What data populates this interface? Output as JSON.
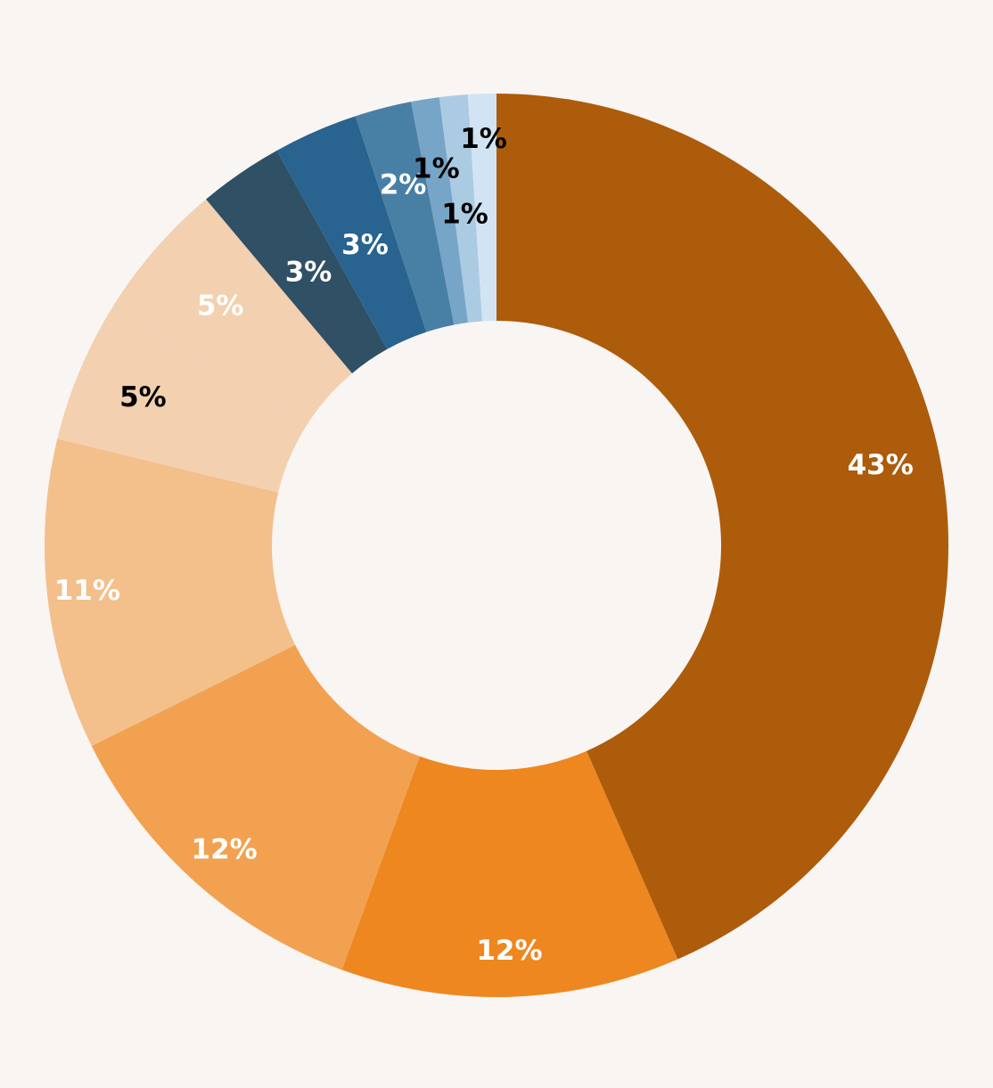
{
  "background": "#f9f5f3",
  "chart_data": {
    "type": "pie",
    "variant": "donut",
    "start": "12 o'clock",
    "direction": "clockwise",
    "legend": "none",
    "slices": [
      {
        "value": 43,
        "label": "43%",
        "color": "#ad5c0c",
        "label_color": "#ffffff"
      },
      {
        "value": 12,
        "label": "12%",
        "color": "#ee871f",
        "label_color": "#ffffff"
      },
      {
        "value": 12,
        "label": "12%",
        "color": "#f2a150",
        "label_color": "#ffffff"
      },
      {
        "value": 11,
        "label": "11%",
        "color": "#f3bf8b",
        "label_color": "#ffffff"
      },
      {
        "value": 5,
        "label": "5%",
        "color": "#f2d0b0",
        "label_color": "#000000"
      },
      {
        "value": 5,
        "label": "5%",
        "color": "#f2d0b0",
        "label_color": "#ffffff"
      },
      {
        "value": 3,
        "label": "3%",
        "color": "#2f5065",
        "label_color": "#ffffff"
      },
      {
        "value": 3,
        "label": "3%",
        "color": "#29638f",
        "label_color": "#ffffff"
      },
      {
        "value": 2,
        "label": "2%",
        "color": "#487fa5",
        "label_color": "#ffffff"
      },
      {
        "value": 1,
        "label": "1%",
        "color": "#77a5c7",
        "label_color": "#000000"
      },
      {
        "value": 1,
        "label": "1%",
        "color": "#abcbe2",
        "label_color": "#000000"
      },
      {
        "value": 1,
        "label": "1%",
        "color": "#d2e4f3",
        "label_color": "#000000"
      }
    ]
  }
}
